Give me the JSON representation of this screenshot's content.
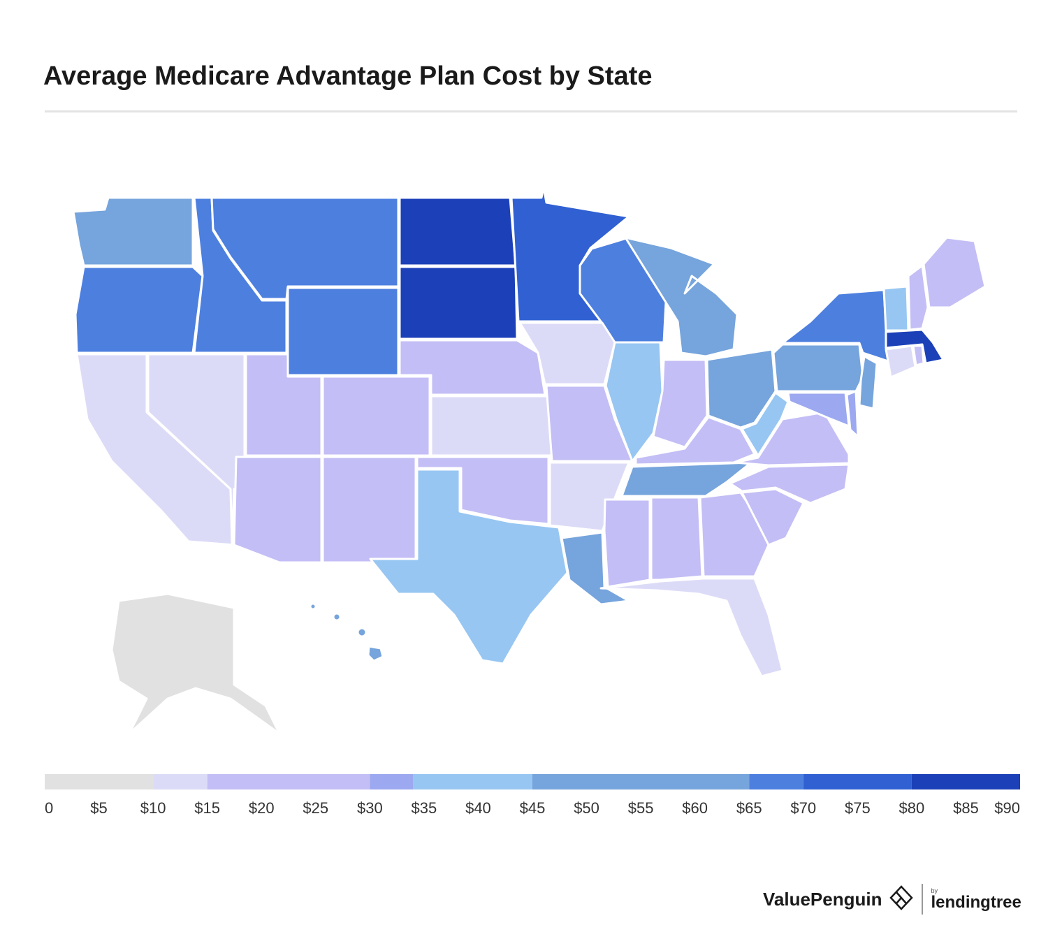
{
  "title": "Average Medicare Advantage Plan Cost by State",
  "legend": {
    "ticks": [
      "0",
      "$5",
      "$10",
      "$15",
      "$20",
      "$25",
      "$30",
      "$35",
      "$40",
      "$45",
      "$50",
      "$55",
      "$60",
      "$65",
      "$70",
      "$75",
      "$80",
      "$85",
      "$90"
    ],
    "bins": [
      {
        "from": 0,
        "to": 10,
        "color": "#e1e1e1"
      },
      {
        "from": 10,
        "to": 15,
        "color": "#dcdbf7"
      },
      {
        "from": 15,
        "to": 30,
        "color": "#c3bef5"
      },
      {
        "from": 30,
        "to": 34,
        "color": "#9ca8ef"
      },
      {
        "from": 34,
        "to": 45,
        "color": "#97c6f2"
      },
      {
        "from": 45,
        "to": 65,
        "color": "#76a4dc"
      },
      {
        "from": 65,
        "to": 70,
        "color": "#4d7fdf"
      },
      {
        "from": 70,
        "to": 80,
        "color": "#3060d2"
      },
      {
        "from": 80,
        "to": 90,
        "color": "#1c40b8"
      }
    ]
  },
  "chart_data": {
    "type": "choropleth",
    "title": "Average Medicare Advantage Plan Cost by State",
    "unit": "USD per month",
    "scale_range": [
      0,
      90
    ],
    "states": [
      {
        "state": "WA",
        "value": 47
      },
      {
        "state": "OR",
        "value": 67
      },
      {
        "state": "CA",
        "value": 12
      },
      {
        "state": "NV",
        "value": 12
      },
      {
        "state": "ID",
        "value": 67
      },
      {
        "state": "MT",
        "value": 67
      },
      {
        "state": "WY",
        "value": 67
      },
      {
        "state": "UT",
        "value": 25
      },
      {
        "state": "AZ",
        "value": 25
      },
      {
        "state": "CO",
        "value": 25
      },
      {
        "state": "NM",
        "value": 25
      },
      {
        "state": "ND",
        "value": 85
      },
      {
        "state": "SD",
        "value": 85
      },
      {
        "state": "NE",
        "value": 25
      },
      {
        "state": "KS",
        "value": 12
      },
      {
        "state": "OK",
        "value": 25
      },
      {
        "state": "TX",
        "value": 38
      },
      {
        "state": "MN",
        "value": 75
      },
      {
        "state": "IA",
        "value": 12
      },
      {
        "state": "MO",
        "value": 25
      },
      {
        "state": "AR",
        "value": 12
      },
      {
        "state": "LA",
        "value": 47
      },
      {
        "state": "WI",
        "value": 67
      },
      {
        "state": "IL",
        "value": 38
      },
      {
        "state": "MI",
        "value": 47
      },
      {
        "state": "IN",
        "value": 25
      },
      {
        "state": "OH",
        "value": 47
      },
      {
        "state": "KY",
        "value": 25
      },
      {
        "state": "TN",
        "value": 47
      },
      {
        "state": "MS",
        "value": 25
      },
      {
        "state": "AL",
        "value": 25
      },
      {
        "state": "GA",
        "value": 25
      },
      {
        "state": "FL",
        "value": 12
      },
      {
        "state": "SC",
        "value": 25
      },
      {
        "state": "NC",
        "value": 25
      },
      {
        "state": "VA",
        "value": 25
      },
      {
        "state": "WV",
        "value": 38
      },
      {
        "state": "PA",
        "value": 47
      },
      {
        "state": "NY",
        "value": 67
      },
      {
        "state": "NJ",
        "value": 47
      },
      {
        "state": "DE",
        "value": 32
      },
      {
        "state": "MD",
        "value": 32
      },
      {
        "state": "CT",
        "value": 12
      },
      {
        "state": "RI",
        "value": 25
      },
      {
        "state": "MA",
        "value": 85
      },
      {
        "state": "VT",
        "value": 38
      },
      {
        "state": "NH",
        "value": 25
      },
      {
        "state": "ME",
        "value": 25
      },
      {
        "state": "AK",
        "value": 0
      },
      {
        "state": "HI",
        "value": 47
      }
    ]
  },
  "brand": {
    "name": "ValuePenguin",
    "by": "by",
    "partner": "lendingtree"
  }
}
